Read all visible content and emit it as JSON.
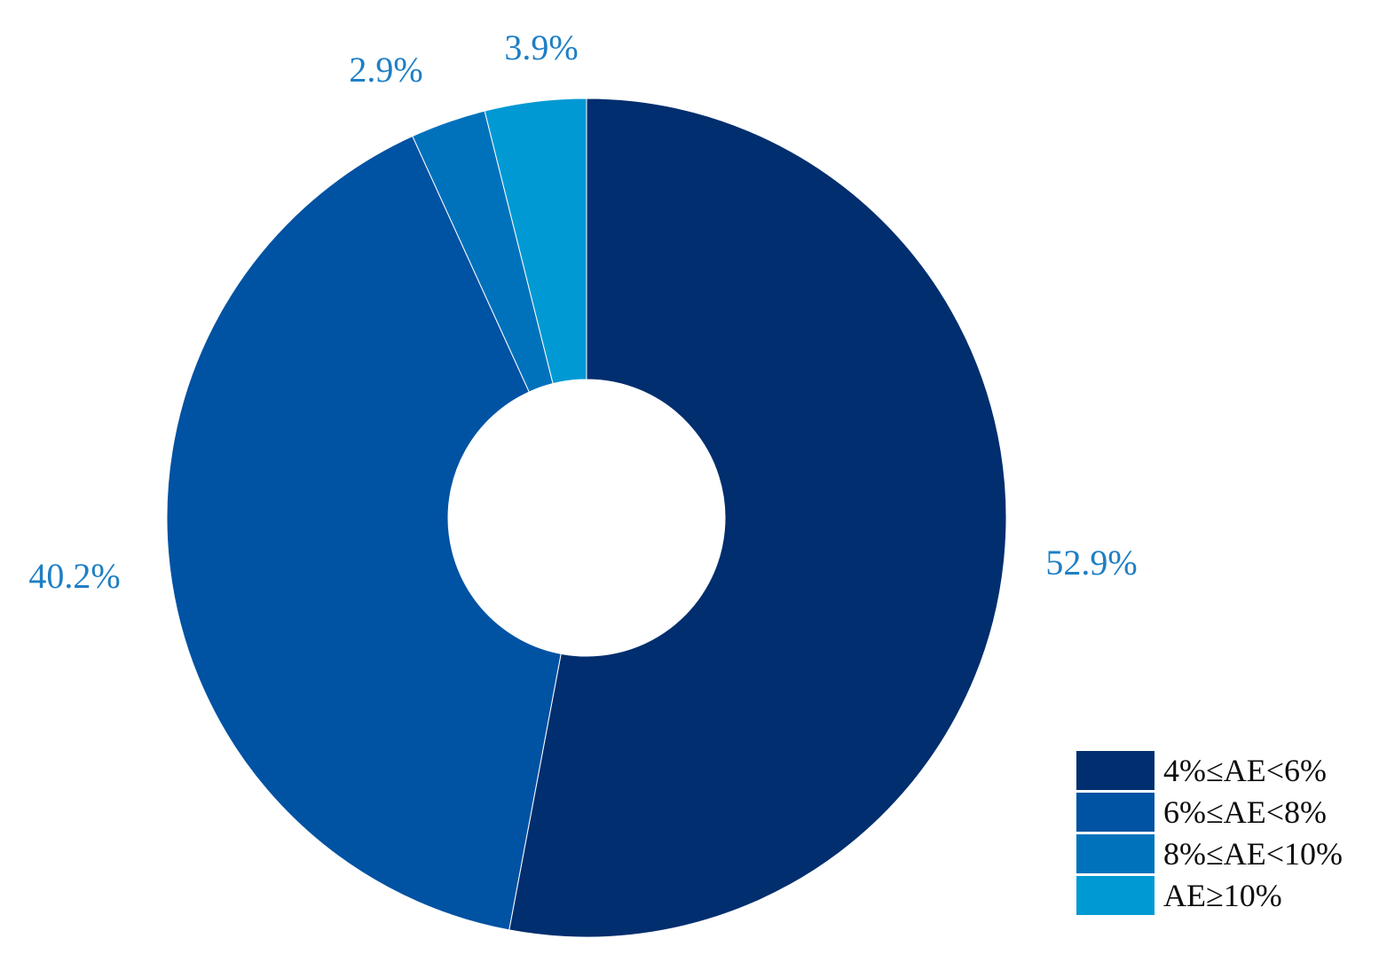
{
  "chart_data": {
    "type": "pie",
    "donut": true,
    "title": "",
    "categories": [
      "4%≤AE<6%",
      "6%≤AE<8%",
      "8%≤AE<10%",
      "AE≥10%"
    ],
    "values": [
      52.9,
      40.2,
      2.9,
      3.9
    ],
    "data_labels": [
      "52.9%",
      "40.2%",
      "2.9%",
      "3.9%"
    ],
    "colors": [
      "#002e6e",
      "#0052a3",
      "#0072bc",
      "#0099d3"
    ],
    "label_color": "#1e7fc4",
    "start_angle": "12 o'clock",
    "direction": "clockwise",
    "legend": {
      "position": "bottom-right",
      "entries": [
        "4%≤AE<6%",
        "6%≤AE<8%",
        "8%≤AE<10%",
        "AE≥10%"
      ]
    }
  }
}
